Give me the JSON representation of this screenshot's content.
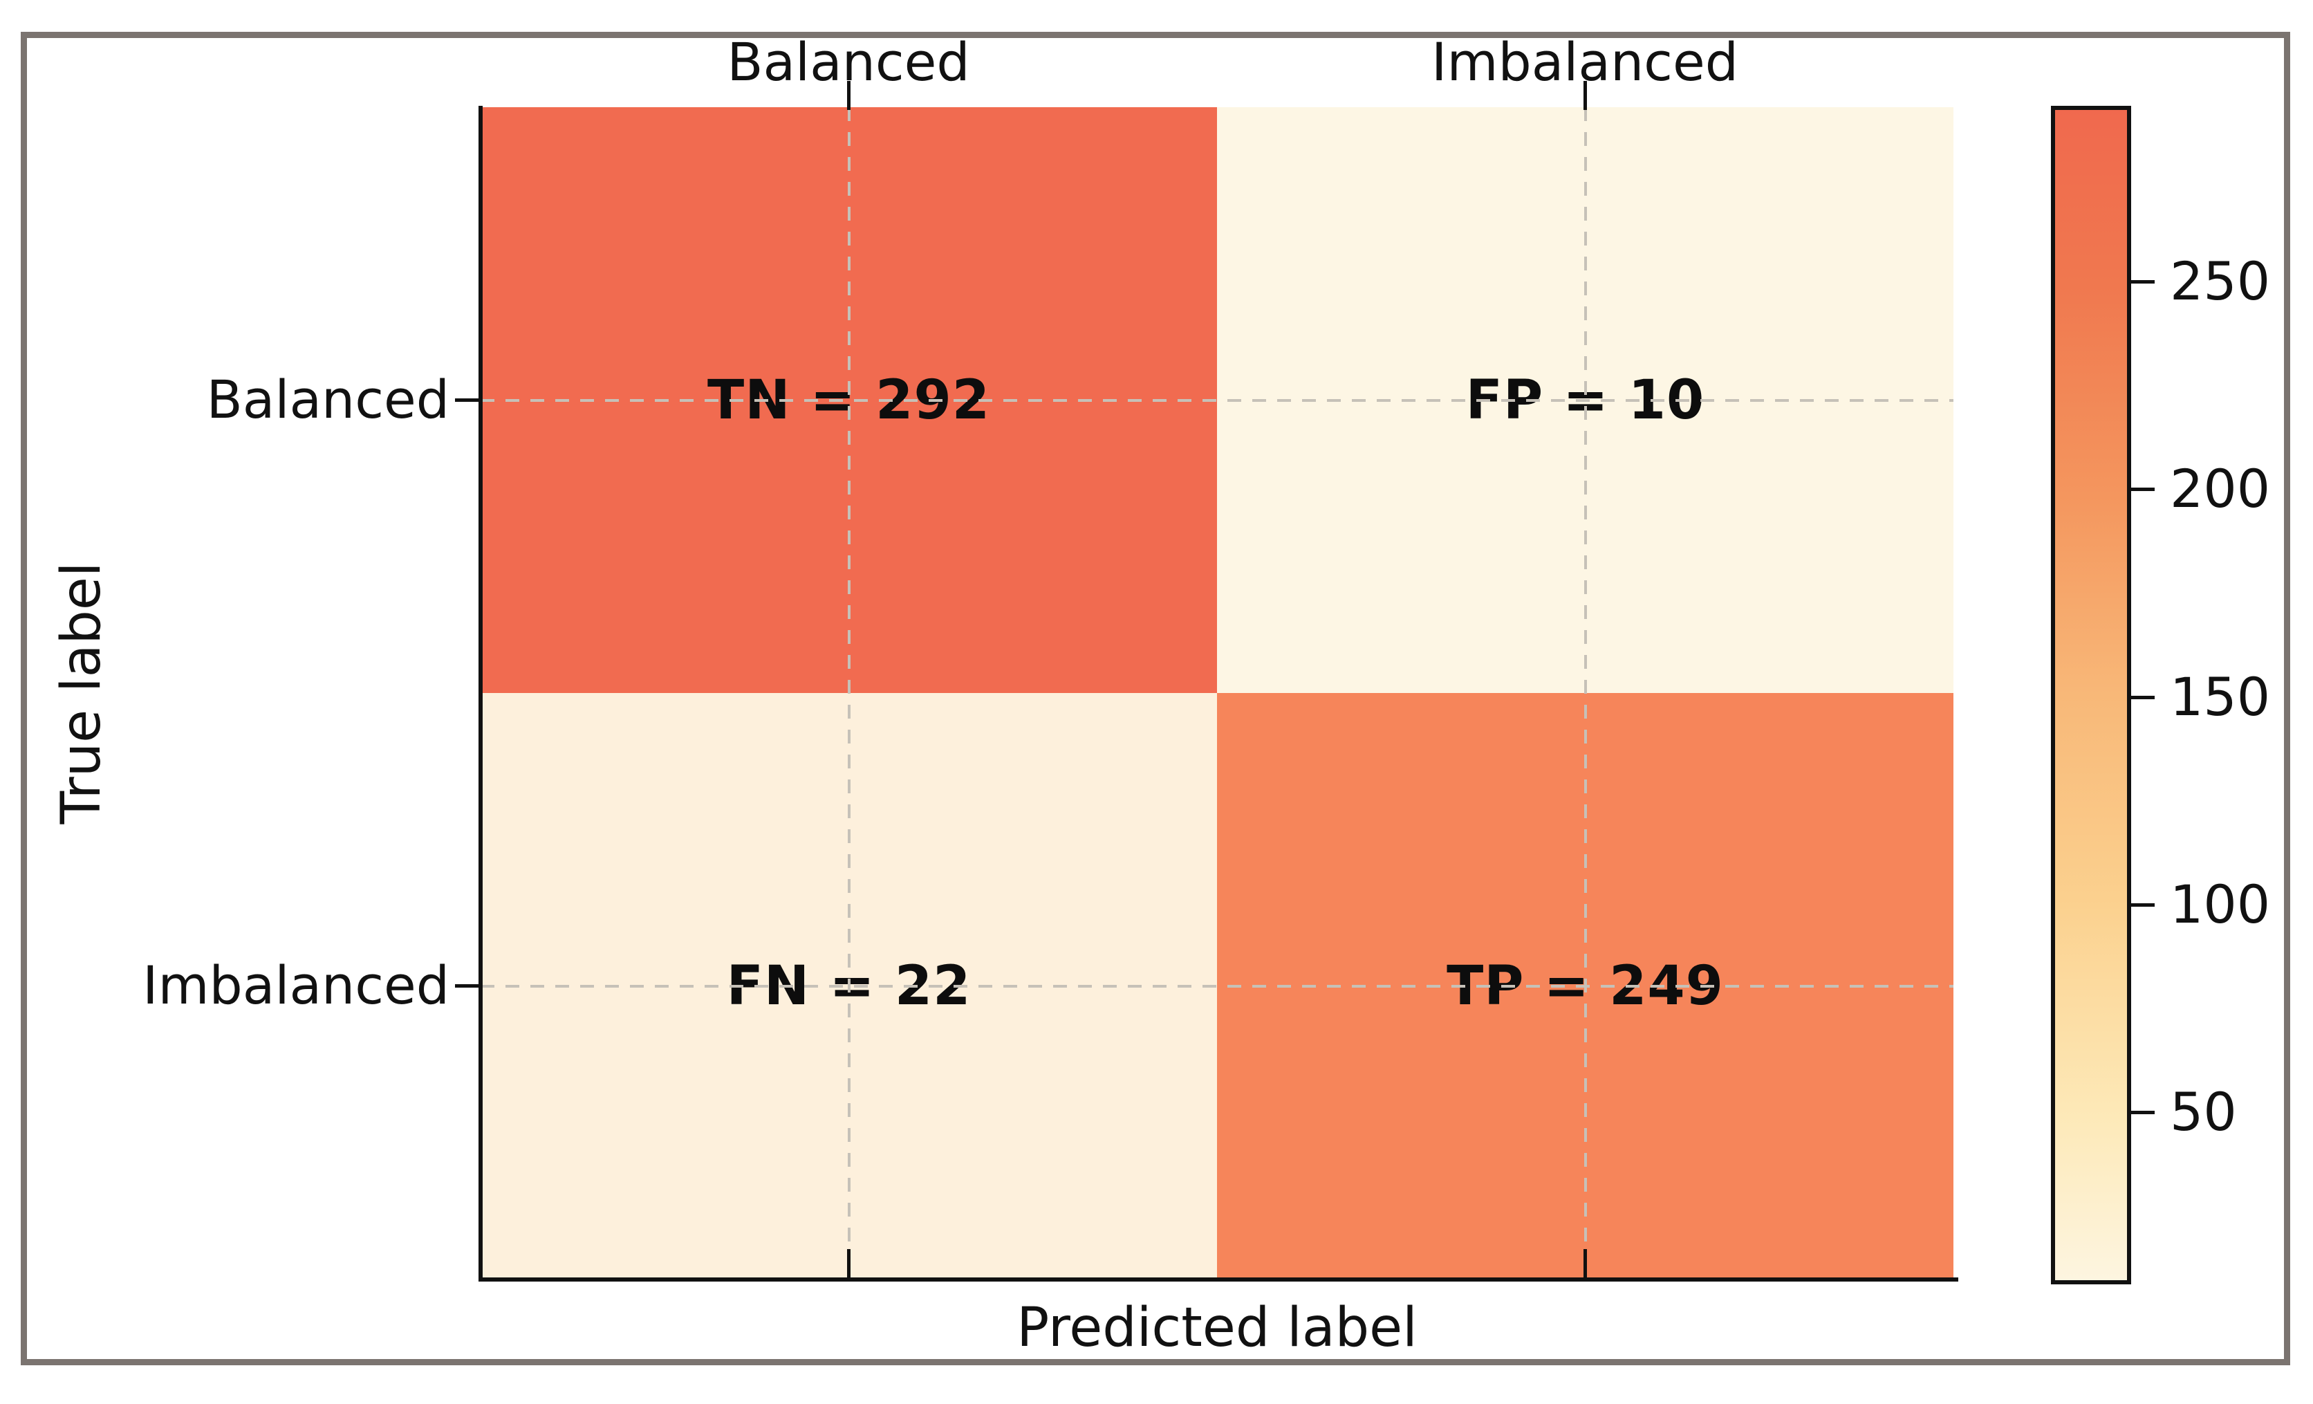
{
  "chart_data": {
    "type": "heatmap",
    "subtype": "confusion-matrix",
    "title": "",
    "xlabel": "Predicted label",
    "ylabel": "True label",
    "x_tick_labels": [
      "Balanced",
      "Imbalanced"
    ],
    "y_tick_labels": [
      "Balanced",
      "Imbalanced"
    ],
    "cells": [
      {
        "row": "Balanced",
        "col": "Balanced",
        "term": "TN",
        "value": 292,
        "text": "TN = 292",
        "color": "#f16b50"
      },
      {
        "row": "Balanced",
        "col": "Imbalanced",
        "term": "FP",
        "value": 10,
        "text": "FP = 10",
        "color": "#fdf6e4"
      },
      {
        "row": "Imbalanced",
        "col": "Balanced",
        "term": "FN",
        "value": 22,
        "text": "FN = 22",
        "color": "#fdf0dc"
      },
      {
        "row": "Imbalanced",
        "col": "Imbalanced",
        "term": "TP",
        "value": 249,
        "text": "TP = 249",
        "color": "#f6855a"
      }
    ],
    "grid": {
      "style": "dashed",
      "color": "#c6c1b8",
      "at": "tick-centers"
    },
    "colorbar": {
      "vmin": 10,
      "vmax": 292,
      "ticks": [
        250,
        200,
        150,
        100,
        50
      ],
      "tick_labels": [
        "250",
        "200",
        "150",
        "100",
        "50"
      ],
      "gradient_top_to_bottom": [
        "#f0694e",
        "#f0784f",
        "#f4965e",
        "#f8b878",
        "#fbd18f",
        "#fde9b8",
        "#fdf5e0"
      ]
    },
    "frame_color": "#7b7470",
    "text_color": "#111111",
    "legend_position": "none"
  }
}
